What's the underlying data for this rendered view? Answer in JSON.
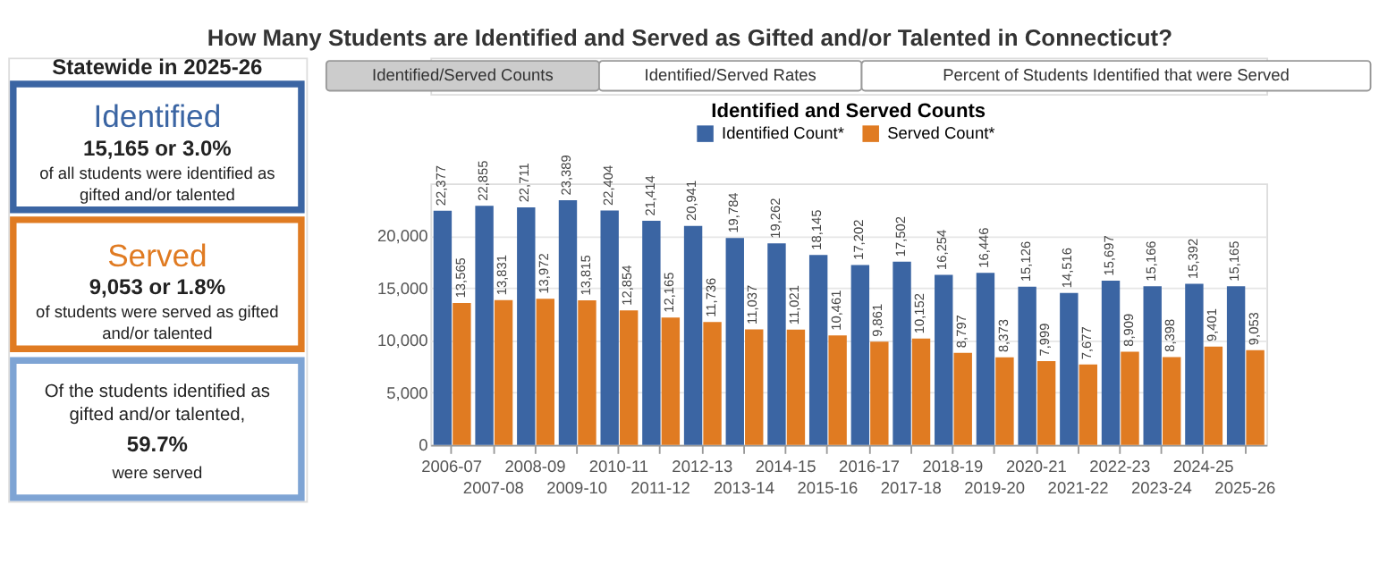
{
  "chart_data": [
    {
      "type": "other",
      "title": "How Many Students are Identified and Served as Gifted and/or Talented in Connecticut?",
      "subtitle": "Statewide in 2025-26",
      "annotations": [
        "Identified",
        "15,165 or 3.0%",
        "of all students were identified as gifted and/or talented",
        "Served",
        "9,053 or 1.8%",
        "of students were served as gifted and/or talented",
        "Of the students identified as gifted and/or talented,",
        "59.7%",
        "were served"
      ],
      "colors": [
        "#3b65a3",
        "#e07b22",
        "#7ea4d4"
      ]
    },
    {
      "type": "bar",
      "title": "Identified and Served Counts",
      "annotations": [
        "Identified/Served Counts",
        "Identified/Served Rates",
        "Percent of Students Identified that were Served"
      ],
      "categories": [
        "2006-07",
        "2007-08",
        "2008-09",
        "2009-10",
        "2010-11",
        "2011-12",
        "2012-13",
        "2013-14",
        "2014-15",
        "2015-16",
        "2016-17",
        "2017-18",
        "2018-19",
        "2019-20",
        "2020-21",
        "2021-22",
        "2022-23",
        "2023-24",
        "2024-25",
        "2025-26"
      ],
      "series": [
        {
          "name": "Identified Count*",
          "color": "#3b65a3",
          "values": [
            22377,
            22855,
            22711,
            23389,
            22404,
            21414,
            20941,
            19784,
            19262,
            18145,
            17202,
            17502,
            16254,
            16446,
            15126,
            14516,
            15697,
            15166,
            15392,
            15165
          ],
          "value_labels": [
            "22,377",
            "22,855",
            "22,711",
            "23,389",
            "22,404",
            "21,414",
            "20,941",
            "19,784",
            "19,262",
            "18,145",
            "17,202",
            "17,502",
            "16,254",
            "16,446",
            "15,126",
            "14,516",
            "15,697",
            "15,166",
            "15,392",
            "15,165"
          ]
        },
        {
          "name": "Served Count*",
          "color": "#e07b22",
          "values": [
            13565,
            13831,
            13972,
            13815,
            12854,
            12165,
            11736,
            11037,
            11021,
            10461,
            9861,
            10152,
            8797,
            8373,
            7999,
            7677,
            8909,
            8398,
            9401,
            9053
          ],
          "value_labels": [
            "13,565",
            "13,831",
            "13,972",
            "13,815",
            "12,854",
            "12,165",
            "11,736",
            "11,037",
            "11,021",
            "10,461",
            "9,861",
            "10,152",
            "8,797",
            "8,373",
            "7,999",
            "7,677",
            "8,909",
            "8,398",
            "9,401",
            "9,053"
          ]
        }
      ],
      "ylim": [
        0,
        25000
      ],
      "yticks": [
        0,
        {
          "value": 5000,
          "label": "5,000"
        },
        {
          "value": 10000,
          "label": "10,000"
        },
        {
          "value": 15000,
          "label": "15,000"
        },
        {
          "value": 20000,
          "label": "20,000"
        }
      ],
      "grid": "y",
      "legend": "top"
    }
  ]
}
